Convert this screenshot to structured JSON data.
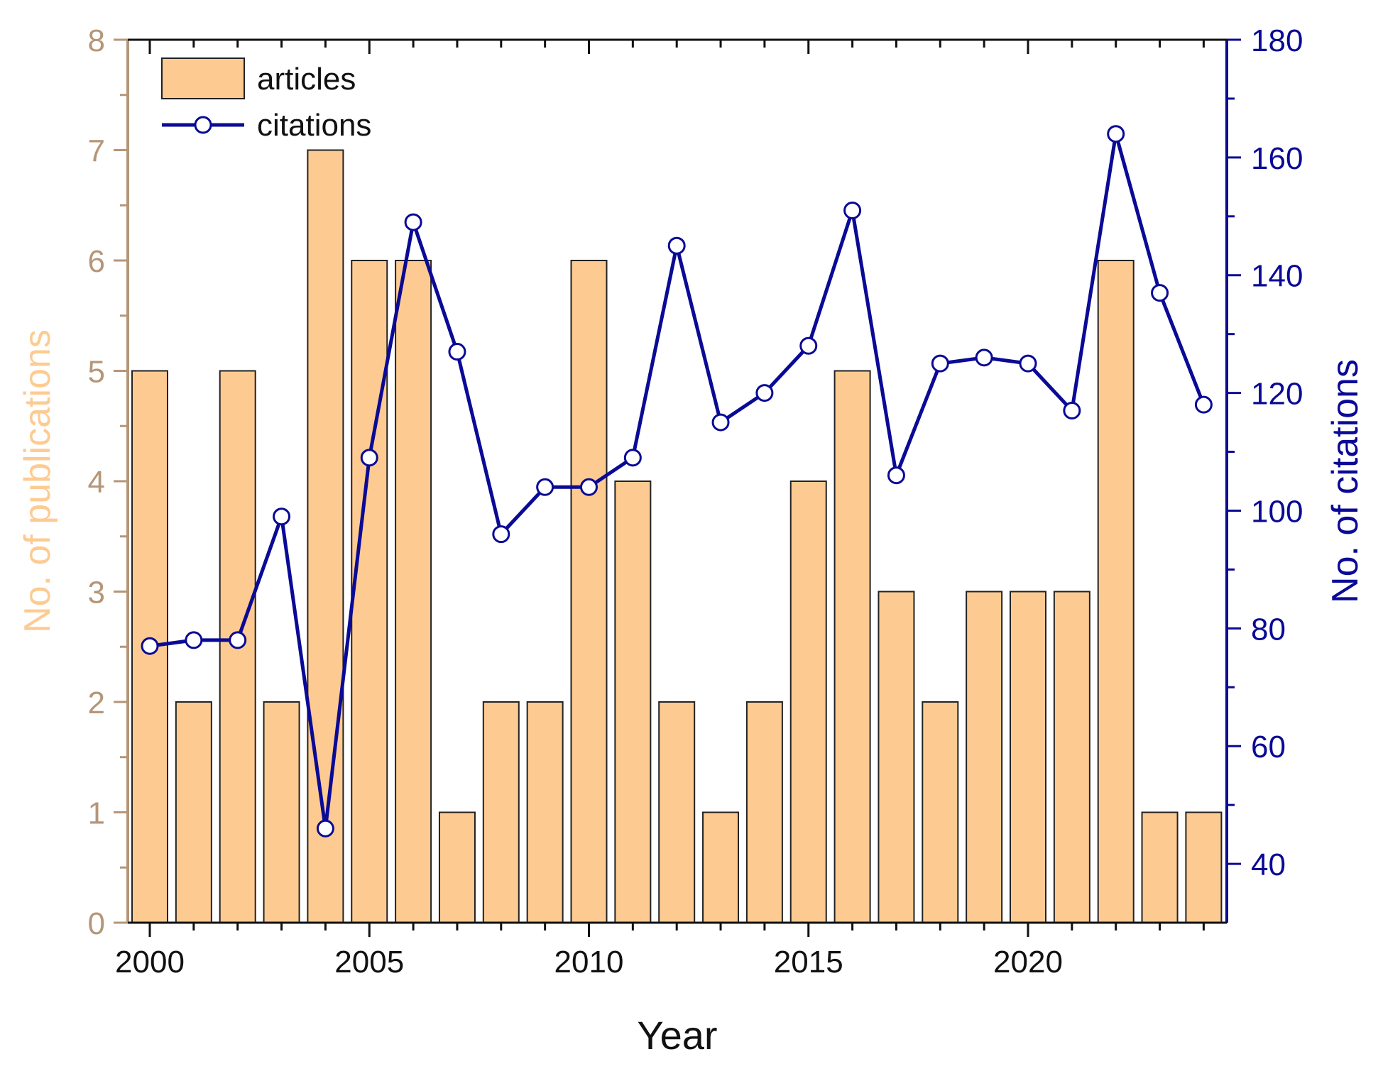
{
  "chart_data": {
    "type": "bar",
    "xlabel": "Year",
    "ylabel_left": "No. of publications",
    "ylabel_right": "No. of citations",
    "categories": [
      2000,
      2001,
      2002,
      2003,
      2004,
      2005,
      2006,
      2007,
      2008,
      2009,
      2010,
      2011,
      2012,
      2013,
      2014,
      2015,
      2016,
      2017,
      2018,
      2019,
      2020,
      2021,
      2022,
      2023,
      2024
    ],
    "x_ticks": [
      "2000",
      "2005",
      "2010",
      "2015",
      "2020"
    ],
    "ylim_left": [
      0,
      8
    ],
    "yticks_left": [
      "0",
      "1",
      "2",
      "3",
      "4",
      "5",
      "6",
      "7",
      "8"
    ],
    "ylim_right": [
      30,
      180
    ],
    "yticks_right": [
      "40",
      "60",
      "80",
      "100",
      "120",
      "140",
      "160",
      "180"
    ],
    "legend": {
      "position": "top-left"
    },
    "grid": false,
    "series": [
      {
        "name": "articles",
        "kind": "bar",
        "axis": "left",
        "color": "#FDCB91",
        "values": [
          5,
          2,
          5,
          2,
          7,
          6,
          6,
          1,
          2,
          2,
          6,
          4,
          2,
          1,
          2,
          4,
          5,
          3,
          2,
          3,
          3,
          3,
          6,
          1,
          1
        ]
      },
      {
        "name": "citations",
        "kind": "line",
        "axis": "right",
        "color": "#0A0A96",
        "values": [
          77,
          78,
          78,
          99,
          46,
          109,
          149,
          127,
          96,
          104,
          104,
          109,
          145,
          115,
          120,
          128,
          151,
          106,
          125,
          126,
          125,
          117,
          164,
          137,
          118
        ]
      }
    ],
    "colors": {
      "left_axis": "#B59678",
      "left_label": "#FDCB91",
      "right_axis": "#0A0A96",
      "bar_edge": "#222222"
    }
  }
}
